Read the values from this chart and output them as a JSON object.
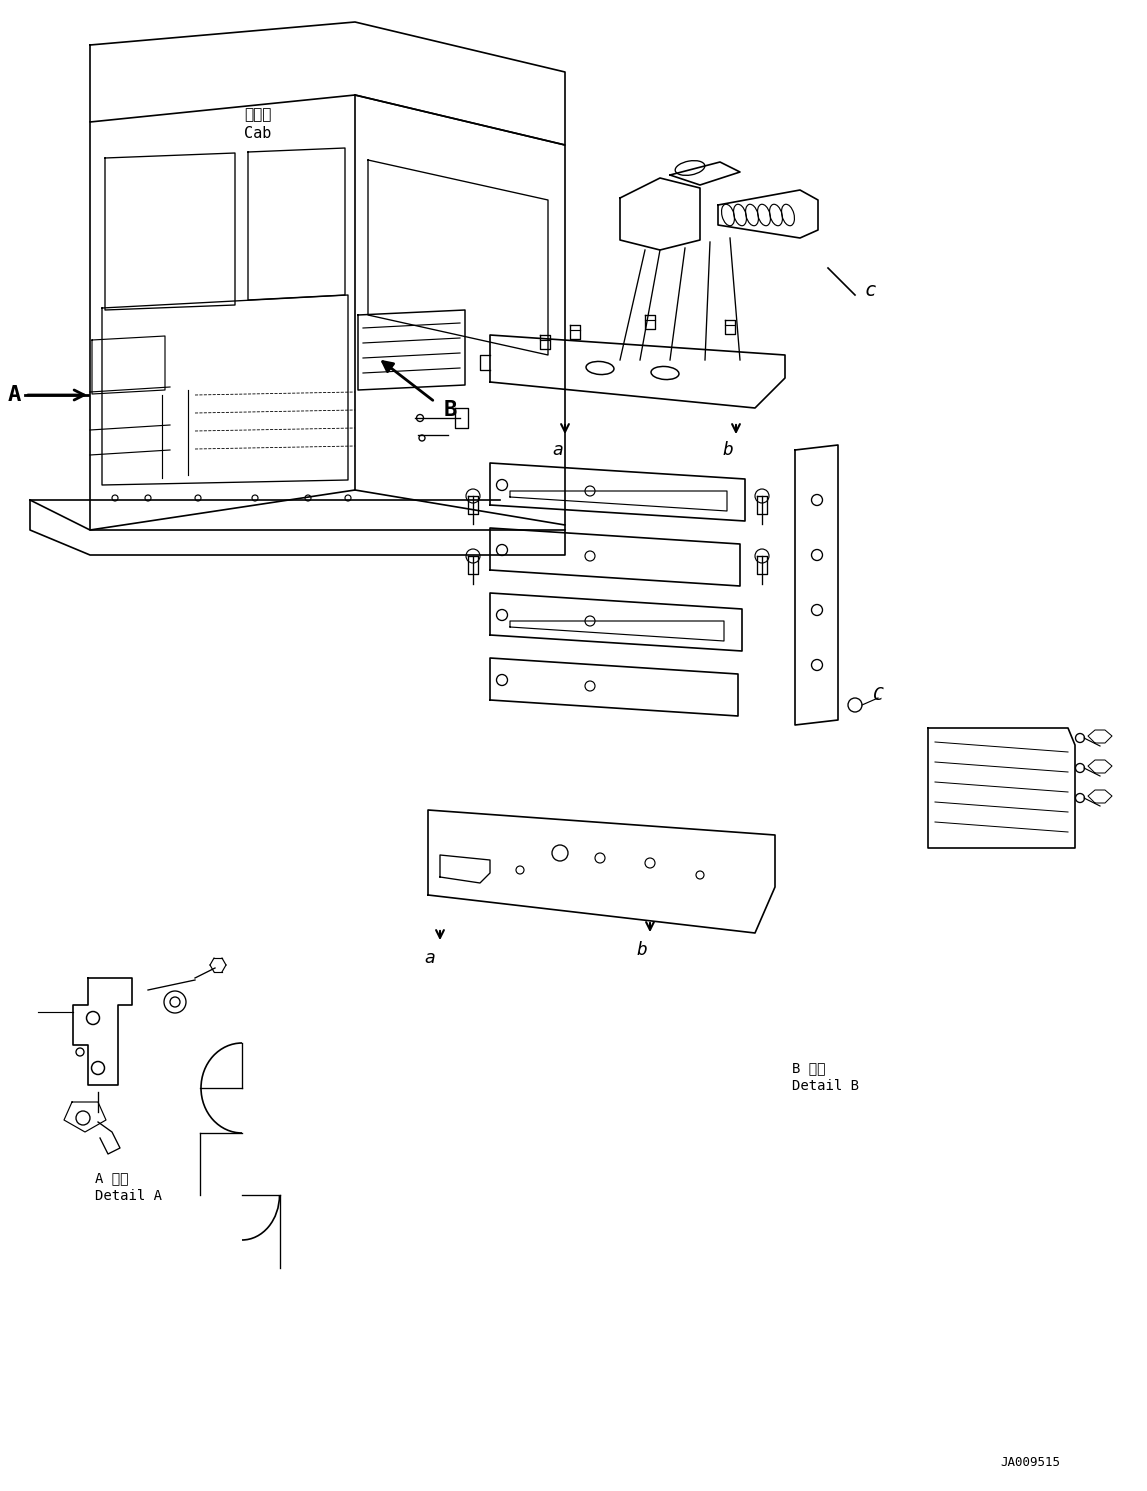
{
  "figure_width": 11.47,
  "figure_height": 14.91,
  "dpi": 100,
  "background_color": "#ffffff",
  "part_number": "JA009515",
  "detail_a_jp": "A 詳細",
  "detail_a_en": "Detail A",
  "detail_b_jp": "B 詳細",
  "detail_b_en": "Detail B",
  "cab_label_jp": "キャブ",
  "cab_label_en": "Cab",
  "line_color": "#000000",
  "line_width": 1.2
}
